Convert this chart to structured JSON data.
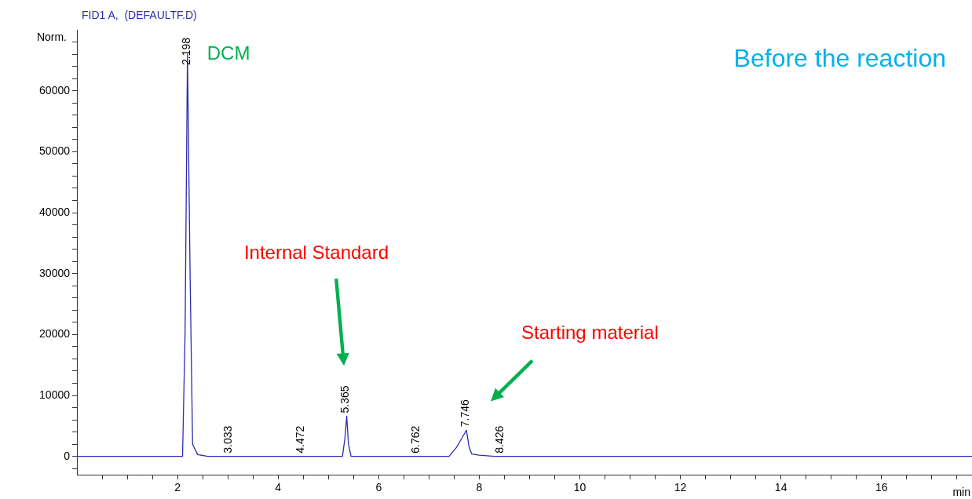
{
  "chart_data": {
    "type": "line",
    "title": "FID1 A,  (DEFAULTF.D)",
    "ylabel": "Norm.",
    "xlabel": "min",
    "x": [
      0,
      2.1,
      2.15,
      2.198,
      2.25,
      2.3,
      2.4,
      2.6,
      5.28,
      5.33,
      5.365,
      5.4,
      5.45,
      7.4,
      7.55,
      7.746,
      7.8,
      7.85,
      8.0,
      8.3,
      17.8
    ],
    "series": [
      {
        "color": "#2b2bb0",
        "values": [
          0,
          0,
          20000,
          66000,
          30000,
          2000,
          300,
          0,
          0,
          3000,
          6600,
          2000,
          0,
          0,
          1500,
          4300,
          1500,
          400,
          200,
          0,
          0
        ]
      }
    ],
    "xlim": [
      0,
      17.8
    ],
    "xticks": [
      {
        "value": 0.5,
        "label": null
      },
      {
        "value": 1,
        "label": null
      },
      {
        "value": 1.5,
        "label": null
      },
      2,
      {
        "value": 2.5,
        "label": null
      },
      {
        "value": 3,
        "label": null
      },
      {
        "value": 3.5,
        "label": null
      },
      4,
      {
        "value": 4.5,
        "label": null
      },
      {
        "value": 5,
        "label": null
      },
      {
        "value": 5.5,
        "label": null
      },
      6,
      {
        "value": 6.5,
        "label": null
      },
      {
        "value": 7,
        "label": null
      },
      {
        "value": 7.5,
        "label": null
      },
      8,
      {
        "value": 8.5,
        "label": null
      },
      {
        "value": 9,
        "label": null
      },
      {
        "value": 9.5,
        "label": null
      },
      10,
      {
        "value": 10.5,
        "label": null
      },
      {
        "value": 11,
        "label": null
      },
      {
        "value": 11.5,
        "label": null
      },
      12,
      {
        "value": 12.5,
        "label": null
      },
      {
        "value": 13,
        "label": null
      },
      {
        "value": 13.5,
        "label": null
      },
      14,
      {
        "value": 14.5,
        "label": null
      },
      {
        "value": 15,
        "label": null
      },
      {
        "value": 15.5,
        "label": null
      },
      16,
      {
        "value": 16.5,
        "label": null
      },
      {
        "value": 17,
        "label": null
      },
      {
        "value": 17.5,
        "label": null
      }
    ],
    "ylim": [
      -3000,
      70000
    ],
    "yticks": [
      {
        "value": -2000,
        "label": null
      },
      0,
      {
        "value": 2000,
        "label": null
      },
      {
        "value": 4000,
        "label": null
      },
      {
        "value": 6000,
        "label": null
      },
      {
        "value": 8000,
        "label": null
      },
      10000,
      {
        "value": 12000,
        "label": null
      },
      {
        "value": 14000,
        "label": null
      },
      {
        "value": 16000,
        "label": null
      },
      {
        "value": 18000,
        "label": null
      },
      20000,
      {
        "value": 22000,
        "label": null
      },
      {
        "value": 24000,
        "label": null
      },
      {
        "value": 26000,
        "label": null
      },
      {
        "value": 28000,
        "label": null
      },
      30000,
      {
        "value": 32000,
        "label": null
      },
      {
        "value": 34000,
        "label": null
      },
      {
        "value": 36000,
        "label": null
      },
      {
        "value": 38000,
        "label": null
      },
      40000,
      {
        "value": 42000,
        "label": null
      },
      {
        "value": 44000,
        "label": null
      },
      {
        "value": 46000,
        "label": null
      },
      {
        "value": 48000,
        "label": null
      },
      50000,
      {
        "value": 52000,
        "label": null
      },
      {
        "value": 54000,
        "label": null
      },
      {
        "value": 56000,
        "label": null
      },
      {
        "value": 58000,
        "label": null
      },
      60000,
      {
        "value": 62000,
        "label": null
      },
      {
        "value": 64000,
        "label": null
      },
      {
        "value": 66000,
        "label": null
      },
      {
        "value": 68000,
        "label": null
      }
    ],
    "grid": false,
    "legend": false,
    "marker": "none",
    "line_style": "solid",
    "annotations": [
      "Before the reaction",
      {
        "text": "DCM",
        "x": 2.198,
        "y": 66000
      },
      "Internal Standard",
      "Starting material",
      {
        "text": "2.198",
        "x": 2.198,
        "y": 66000
      },
      {
        "text": "3.033",
        "x": 3.033,
        "y": 0
      },
      {
        "text": "4.472",
        "x": 4.472,
        "y": 0
      },
      {
        "text": "5.365",
        "x": 5.365,
        "y": 6600
      },
      {
        "text": "6.762",
        "x": 6.762,
        "y": 0
      },
      {
        "text": "7.746",
        "x": 7.746,
        "y": 4300
      },
      {
        "text": "8.426",
        "x": 8.426,
        "y": 0
      }
    ]
  }
}
